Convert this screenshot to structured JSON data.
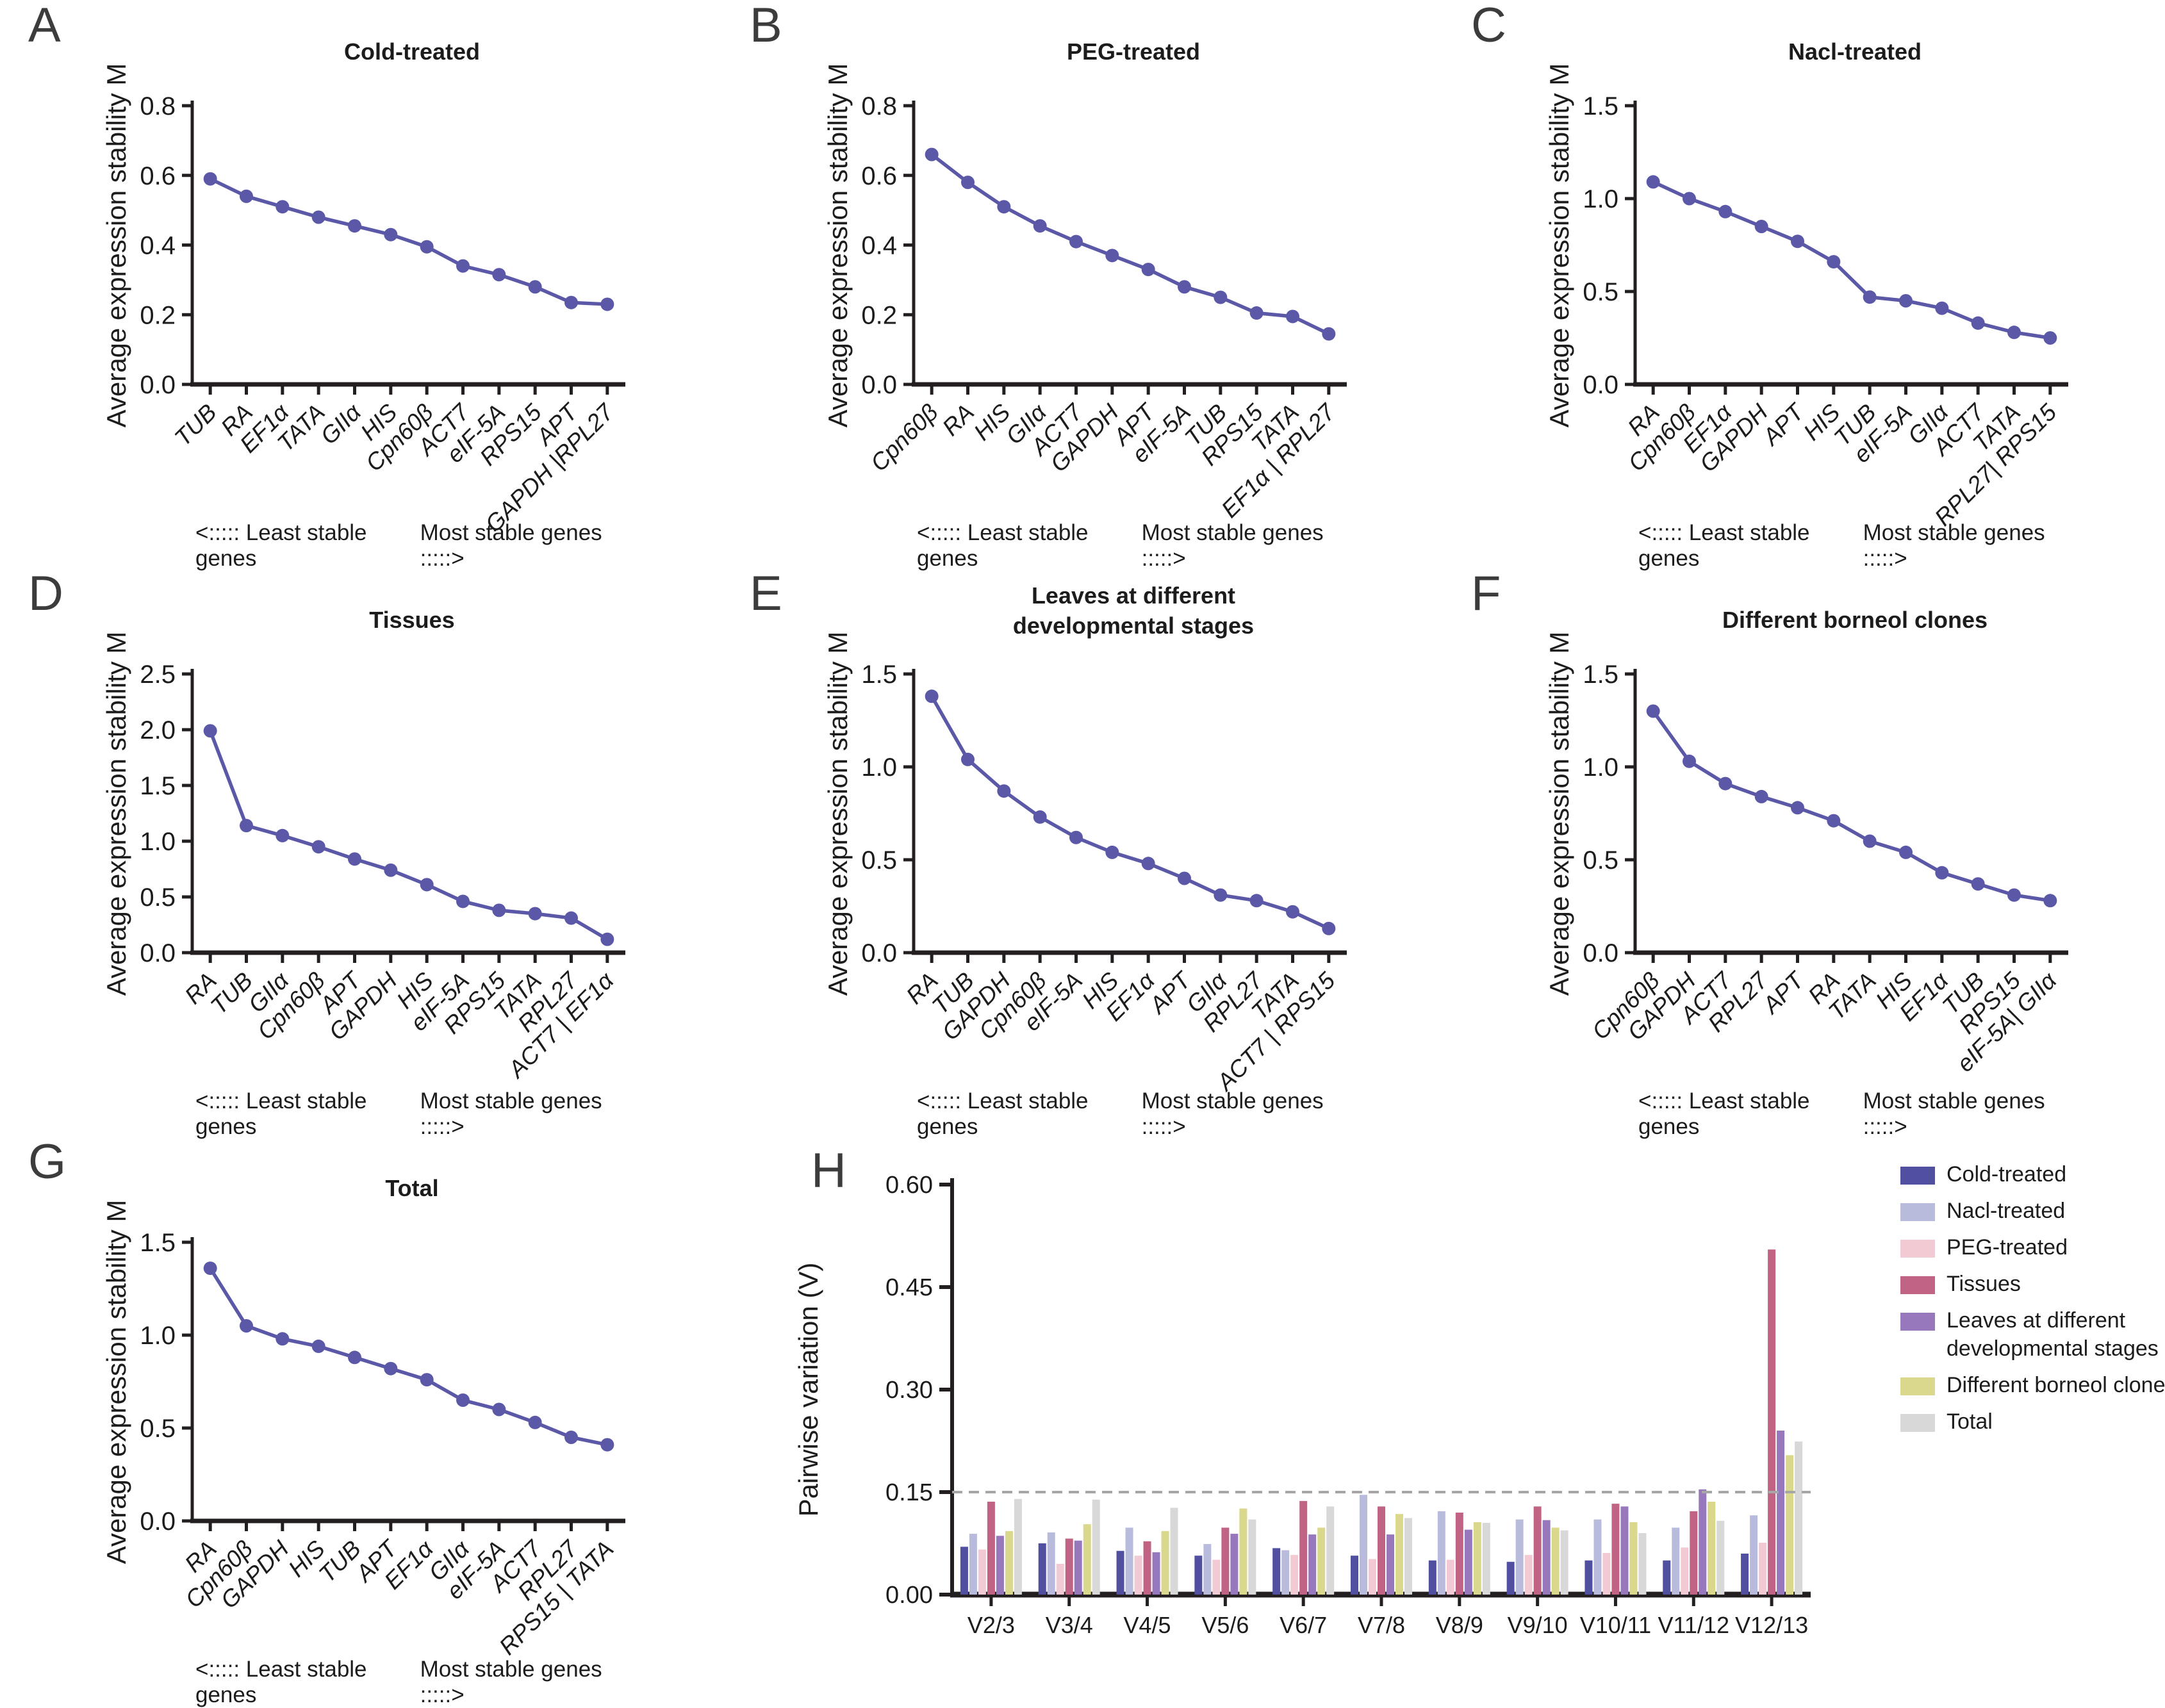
{
  "figure": {
    "accent_color": "#5B58A7",
    "axis_color": "#231F20",
    "threshold_color": "#A6A6A6",
    "footer_left": "<:::::  Least stable genes",
    "footer_right": "Most stable genes  :::::>"
  },
  "chart_data": [
    {
      "type": "line",
      "panel": "A",
      "title": "Cold-treated",
      "ylabel": "Average expression stability M",
      "ylim": [
        0,
        0.8
      ],
      "yticks": [
        0,
        0.2,
        0.4,
        0.6,
        0.8
      ],
      "ydecimals": 1,
      "categories": [
        "TUB",
        "RA",
        "EF1α",
        "TATA",
        "GIIα",
        "HIS",
        "Cpn60β",
        "ACT7",
        "eIF-5A",
        "RPS15",
        "APT",
        "GAPDH |RPL27"
      ],
      "values": [
        0.59,
        0.54,
        0.51,
        0.48,
        0.455,
        0.43,
        0.395,
        0.34,
        0.315,
        0.28,
        0.235,
        0.23
      ]
    },
    {
      "type": "line",
      "panel": "B",
      "title": "PEG-treated",
      "ylabel": "Average expression stability M",
      "ylim": [
        0,
        0.8
      ],
      "yticks": [
        0,
        0.2,
        0.4,
        0.6,
        0.8
      ],
      "ydecimals": 1,
      "categories": [
        "Cpn60β",
        "RA",
        "HIS",
        "GIIα",
        "ACT7",
        "GAPDH",
        "APT",
        "eIF-5A",
        "TUB",
        "RPS15",
        "TATA",
        "EF1α | RPL27"
      ],
      "values": [
        0.66,
        0.58,
        0.51,
        0.455,
        0.41,
        0.37,
        0.33,
        0.28,
        0.25,
        0.205,
        0.195,
        0.145
      ]
    },
    {
      "type": "line",
      "panel": "C",
      "title": "Nacl-treated",
      "ylabel": "Average expression stability M",
      "ylim": [
        0,
        1.5
      ],
      "yticks": [
        0,
        0.5,
        1.0,
        1.5
      ],
      "ydecimals": 1,
      "categories": [
        "RA",
        "Cpn60β",
        "EF1α",
        "GAPDH",
        "APT",
        "HIS",
        "TUB",
        "eIF-5A",
        "GIIα",
        "ACT7",
        "TATA",
        "RPL27| RPS15"
      ],
      "values": [
        1.09,
        1.0,
        0.93,
        0.85,
        0.77,
        0.66,
        0.47,
        0.45,
        0.41,
        0.33,
        0.28,
        0.25
      ]
    },
    {
      "type": "line",
      "panel": "D",
      "title": "Tissues",
      "ylabel": "Average expression stability M",
      "ylim": [
        0,
        2.5
      ],
      "yticks": [
        0,
        0.5,
        1.0,
        1.5,
        2.0,
        2.5
      ],
      "ydecimals": 1,
      "categories": [
        "RA",
        "TUB",
        "GIIα",
        "Cpn60β",
        "APT",
        "GAPDH",
        "HIS",
        "eIF-5A",
        "RPS15",
        "TATA",
        "RPL27",
        "ACT7 | EF1α"
      ],
      "values": [
        1.99,
        1.14,
        1.05,
        0.95,
        0.84,
        0.74,
        0.61,
        0.46,
        0.38,
        0.35,
        0.31,
        0.12
      ]
    },
    {
      "type": "line",
      "panel": "E",
      "title": "Leaves at different\ndevelopmental stages",
      "ylabel": "Average expression stability M",
      "ylim": [
        0,
        1.5
      ],
      "yticks": [
        0,
        0.5,
        1.0,
        1.5
      ],
      "ydecimals": 1,
      "categories": [
        "RA",
        "TUB",
        "GAPDH",
        "Cpn60β",
        "eIF-5A",
        "HIS",
        "EF1α",
        "APT",
        "GIIα",
        "RPL27",
        "TATA",
        "ACT7 | RPS15"
      ],
      "values": [
        1.38,
        1.04,
        0.87,
        0.73,
        0.62,
        0.54,
        0.48,
        0.4,
        0.31,
        0.28,
        0.22,
        0.13
      ]
    },
    {
      "type": "line",
      "panel": "F",
      "title": "Different borneol clones",
      "ylabel": "Average expression stability M",
      "ylim": [
        0,
        1.5
      ],
      "yticks": [
        0,
        0.5,
        1.0,
        1.5
      ],
      "ydecimals": 1,
      "categories": [
        "Cpn60β",
        "GAPDH",
        "ACT7",
        "RPL27",
        "APT",
        "RA",
        "TATA",
        "HIS",
        "EF1α",
        "TUB",
        "RPS15",
        "eIF-5A| GIIα"
      ],
      "values": [
        1.3,
        1.03,
        0.91,
        0.84,
        0.78,
        0.71,
        0.6,
        0.54,
        0.43,
        0.37,
        0.31,
        0.28
      ]
    },
    {
      "type": "line",
      "panel": "G",
      "title": "Total",
      "ylabel": "Average expression stability M",
      "ylim": [
        0,
        1.5
      ],
      "yticks": [
        0,
        0.5,
        1.0,
        1.5
      ],
      "ydecimals": 1,
      "categories": [
        "RA",
        "Cpn60β",
        "GAPDH",
        "HIS",
        "TUB",
        "APT",
        "EF1α",
        "GIIα",
        "eIF-5A",
        "ACT7",
        "RPL27",
        "RPS15 | TATA"
      ],
      "values": [
        1.36,
        1.05,
        0.98,
        0.94,
        0.88,
        0.82,
        0.76,
        0.65,
        0.6,
        0.53,
        0.45,
        0.41
      ]
    },
    {
      "type": "bar",
      "panel": "H",
      "ylabel": "Pairwise variation  (V)",
      "ylim": [
        0,
        0.6
      ],
      "yticks": [
        0,
        0.15,
        0.3,
        0.45,
        0.6
      ],
      "ydecimals": 2,
      "threshold": 0.15,
      "legend_position": "top-right",
      "categories": [
        "V2/3",
        "V3/4",
        "V4/5",
        "V5/6",
        "V6/7",
        "V7/8",
        "V8/9",
        "V9/10",
        "V10/11",
        "V11/12",
        "V12/13"
      ],
      "series": [
        {
          "name": "Cold-treated",
          "color": "#514FA0",
          "values": [
            0.07,
            0.075,
            0.064,
            0.057,
            0.068,
            0.057,
            0.05,
            0.048,
            0.05,
            0.05,
            0.06
          ]
        },
        {
          "name": "Nacl-treated",
          "color": "#B9BBDD",
          "values": [
            0.089,
            0.091,
            0.098,
            0.074,
            0.065,
            0.146,
            0.122,
            0.11,
            0.11,
            0.098,
            0.116
          ]
        },
        {
          "name": "PEG-treated",
          "color": "#F2CAD3",
          "values": [
            0.066,
            0.045,
            0.057,
            0.051,
            0.058,
            0.052,
            0.051,
            0.058,
            0.061,
            0.069,
            0.076
          ]
        },
        {
          "name": "Tissues",
          "color": "#C06385",
          "values": [
            0.136,
            0.082,
            0.078,
            0.098,
            0.137,
            0.129,
            0.12,
            0.129,
            0.133,
            0.122,
            0.505
          ]
        },
        {
          "name": "Leaves at different\ndevelopmental stages",
          "color": "#9878BC",
          "values": [
            0.086,
            0.079,
            0.062,
            0.089,
            0.088,
            0.088,
            0.095,
            0.109,
            0.129,
            0.154,
            0.24
          ]
        },
        {
          "name": "Different borneol clones",
          "color": "#D9D88D",
          "values": [
            0.093,
            0.103,
            0.093,
            0.126,
            0.098,
            0.118,
            0.106,
            0.098,
            0.106,
            0.136,
            0.204
          ]
        },
        {
          "name": "Total",
          "color": "#D8D8D8",
          "values": [
            0.14,
            0.139,
            0.127,
            0.11,
            0.129,
            0.112,
            0.105,
            0.094,
            0.09,
            0.108,
            0.224
          ]
        }
      ]
    }
  ]
}
